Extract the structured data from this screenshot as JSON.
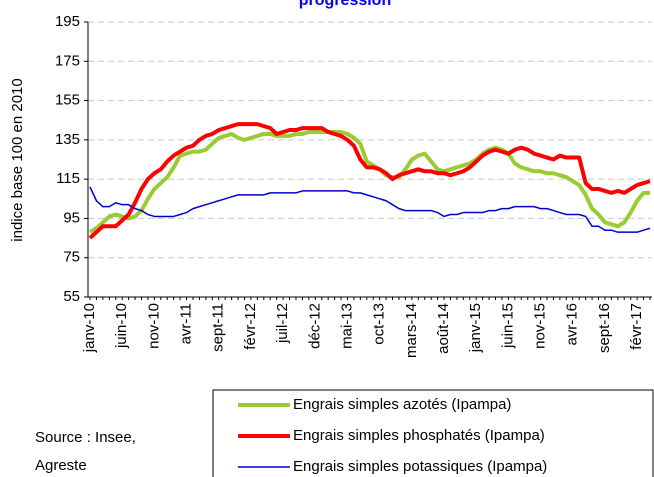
{
  "chart_data": {
    "type": "line",
    "title": "progression",
    "ylabel": "indice base 100 en 2010",
    "source": [
      "Source : Insee,",
      "Agreste"
    ],
    "categories": [
      "janv-10",
      null,
      null,
      null,
      null,
      "juin-10",
      null,
      null,
      null,
      null,
      "nov-10",
      null,
      null,
      null,
      null,
      "avr-11",
      null,
      null,
      null,
      null,
      "sept-11",
      null,
      null,
      null,
      null,
      "févr-12",
      null,
      null,
      null,
      null,
      "juil-12",
      null,
      null,
      null,
      null,
      "déc-12",
      null,
      null,
      null,
      null,
      "mai-13",
      null,
      null,
      null,
      null,
      "oct-13",
      null,
      null,
      null,
      null,
      "mars-14",
      null,
      null,
      null,
      null,
      "août-14",
      null,
      null,
      null,
      null,
      "janv-15",
      null,
      null,
      null,
      null,
      "juin-15",
      null,
      null,
      null,
      null,
      "nov-15",
      null,
      null,
      null,
      null,
      "avr-16",
      null,
      null,
      null,
      null,
      "sept-16",
      null,
      null,
      null,
      null,
      "févr-17",
      null,
      null
    ],
    "series": [
      {
        "name": "Engrais simples azotés (Ipampa)",
        "color": "#99cc33",
        "width": 4,
        "values": [
          88,
          90,
          93,
          96,
          97,
          96,
          95,
          96,
          99,
          105,
          110,
          113,
          116,
          121,
          127,
          128,
          129,
          129,
          130,
          133,
          136,
          137,
          138,
          136,
          135,
          136,
          137,
          138,
          138,
          137,
          137,
          137,
          138,
          138,
          139,
          139,
          139,
          139,
          139,
          139,
          138,
          136,
          133,
          124,
          122,
          120,
          117,
          116,
          116,
          120,
          125,
          127,
          128,
          124,
          120,
          119,
          120,
          121,
          122,
          123,
          125,
          128,
          130,
          131,
          130,
          128,
          123,
          121,
          120,
          119,
          119,
          118,
          118,
          117,
          116,
          114,
          112,
          107,
          100,
          97,
          93,
          92,
          91,
          93,
          98,
          104,
          108,
          108
        ]
      },
      {
        "name": "Engrais simples phosphatés (Ipampa)",
        "color": "#ff0000",
        "width": 4,
        "values": [
          85,
          88,
          91,
          91,
          91,
          94,
          97,
          103,
          110,
          115,
          118,
          120,
          124,
          127,
          129,
          131,
          132,
          135,
          137,
          138,
          140,
          141,
          142,
          143,
          143,
          143,
          143,
          142,
          141,
          138,
          139,
          140,
          140,
          141,
          141,
          141,
          141,
          139,
          138,
          137,
          135,
          132,
          125,
          121,
          121,
          120,
          118,
          115,
          117,
          118,
          119,
          120,
          119,
          119,
          118,
          118,
          117,
          118,
          119,
          121,
          124,
          127,
          129,
          130,
          129,
          128,
          130,
          131,
          130,
          128,
          127,
          126,
          125,
          127,
          126,
          126,
          126,
          113,
          110,
          110,
          109,
          108,
          109,
          108,
          110,
          112,
          113,
          114
        ]
      },
      {
        "name": "Engrais simples potassiques (Ipampa)",
        "color": "#0000cc",
        "width": 1.5,
        "values": [
          111,
          104,
          101,
          101,
          103,
          102,
          102,
          100,
          99,
          97,
          96,
          96,
          96,
          96,
          97,
          98,
          100,
          101,
          102,
          103,
          104,
          105,
          106,
          107,
          107,
          107,
          107,
          107,
          108,
          108,
          108,
          108,
          108,
          109,
          109,
          109,
          109,
          109,
          109,
          109,
          109,
          108,
          108,
          107,
          106,
          105,
          104,
          102,
          100,
          99,
          99,
          99,
          99,
          99,
          98,
          96,
          97,
          97,
          98,
          98,
          98,
          98,
          99,
          99,
          100,
          100,
          101,
          101,
          101,
          101,
          100,
          100,
          99,
          98,
          97,
          97,
          97,
          96,
          91,
          91,
          89,
          89,
          88,
          88,
          88,
          88,
          89,
          90
        ]
      }
    ],
    "ylim": [
      55,
      195
    ],
    "yticks": [
      55,
      75,
      95,
      115,
      135,
      155,
      175,
      195
    ],
    "grid": true
  }
}
